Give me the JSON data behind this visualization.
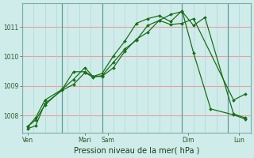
{
  "title": "",
  "xlabel": "Pression niveau de la mer( hPa )",
  "background_color": "#d0ecea",
  "grid_h_color": "#e8a0a0",
  "grid_v_color": "#a8d8d4",
  "line_color": "#1a6e1a",
  "ylim": [
    1007.4,
    1011.8
  ],
  "xlim": [
    0,
    20
  ],
  "y_ticks": [
    1008,
    1009,
    1010,
    1011
  ],
  "x_tick_positions": [
    0.5,
    5.5,
    7.5,
    14.5,
    19.0
  ],
  "x_tick_labels": [
    "Ven",
    "Mari",
    "Sam",
    "Dim",
    "Lun"
  ],
  "x_major_lines": [
    0,
    3.5,
    7.0,
    14.0,
    18.0
  ],
  "series1": {
    "x": [
      0.5,
      1.2,
      2.0,
      3.5,
      4.5,
      5.5,
      6.2,
      7.0,
      8.0,
      9.0,
      10.0,
      11.0,
      12.0,
      13.0,
      14.0,
      15.0,
      16.0,
      18.5,
      19.5
    ],
    "y": [
      1007.55,
      1007.65,
      1008.4,
      1008.85,
      1009.05,
      1009.45,
      1009.3,
      1009.35,
      1009.8,
      1010.25,
      1010.55,
      1011.05,
      1011.22,
      1011.42,
      1011.52,
      1011.05,
      1011.32,
      1008.05,
      1007.92
    ]
  },
  "series2": {
    "x": [
      0.5,
      1.2,
      2.0,
      3.5,
      4.5,
      5.5,
      6.2,
      7.0,
      8.0,
      9.0,
      10.0,
      11.0,
      12.0,
      13.0,
      14.0,
      15.0,
      16.5,
      18.5,
      19.5
    ],
    "y": [
      1007.62,
      1007.85,
      1008.35,
      1008.88,
      1009.22,
      1009.62,
      1009.32,
      1009.42,
      1010.02,
      1010.52,
      1011.12,
      1011.28,
      1011.38,
      1011.18,
      1011.55,
      1010.12,
      1008.22,
      1008.02,
      1007.88
    ]
  },
  "series3": {
    "x": [
      0.5,
      1.2,
      2.0,
      3.5,
      4.5,
      5.5,
      6.2,
      7.0,
      8.0,
      9.0,
      10.0,
      11.0,
      12.0,
      13.0,
      14.0,
      15.0,
      18.5,
      19.5
    ],
    "y": [
      1007.62,
      1007.92,
      1008.52,
      1008.88,
      1009.48,
      1009.48,
      1009.32,
      1009.32,
      1009.62,
      1010.18,
      1010.58,
      1010.82,
      1011.22,
      1011.08,
      1011.12,
      1011.28,
      1008.52,
      1008.72
    ]
  }
}
